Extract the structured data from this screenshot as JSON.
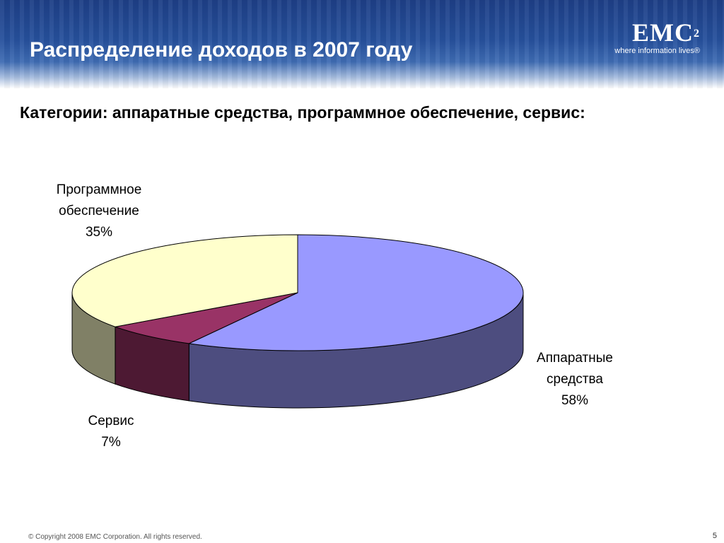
{
  "header": {
    "title": "Распределение доходов в 2007 году",
    "logo_text": "EMC",
    "logo_superscript": "2",
    "logo_tagline": "where information lives®"
  },
  "subtitle": "Категории: аппаратные средства, программное обеспечение, сервис:",
  "chart_data": {
    "type": "pie",
    "style": "3d",
    "title": "",
    "slices": [
      {
        "name": "Аппаратные средства",
        "label_lines": [
          "Аппаратные",
          "средства",
          "58%"
        ],
        "value": 58,
        "top_color": "#9999ff",
        "side_color": "#4d4d7f"
      },
      {
        "name": "Сервис",
        "label_lines": [
          "Сервис",
          "7%"
        ],
        "value": 7,
        "top_color": "#993366",
        "side_color": "#4d1933"
      },
      {
        "name": "Программное обеспечение",
        "label_lines": [
          "Программное",
          "обеспечение",
          "35%"
        ],
        "value": 35,
        "top_color": "#ffffcc",
        "side_color": "#808066"
      }
    ]
  },
  "footer": {
    "copyright": "© Copyright 2008 EMC Corporation. All rights reserved.",
    "page_number": "5"
  }
}
